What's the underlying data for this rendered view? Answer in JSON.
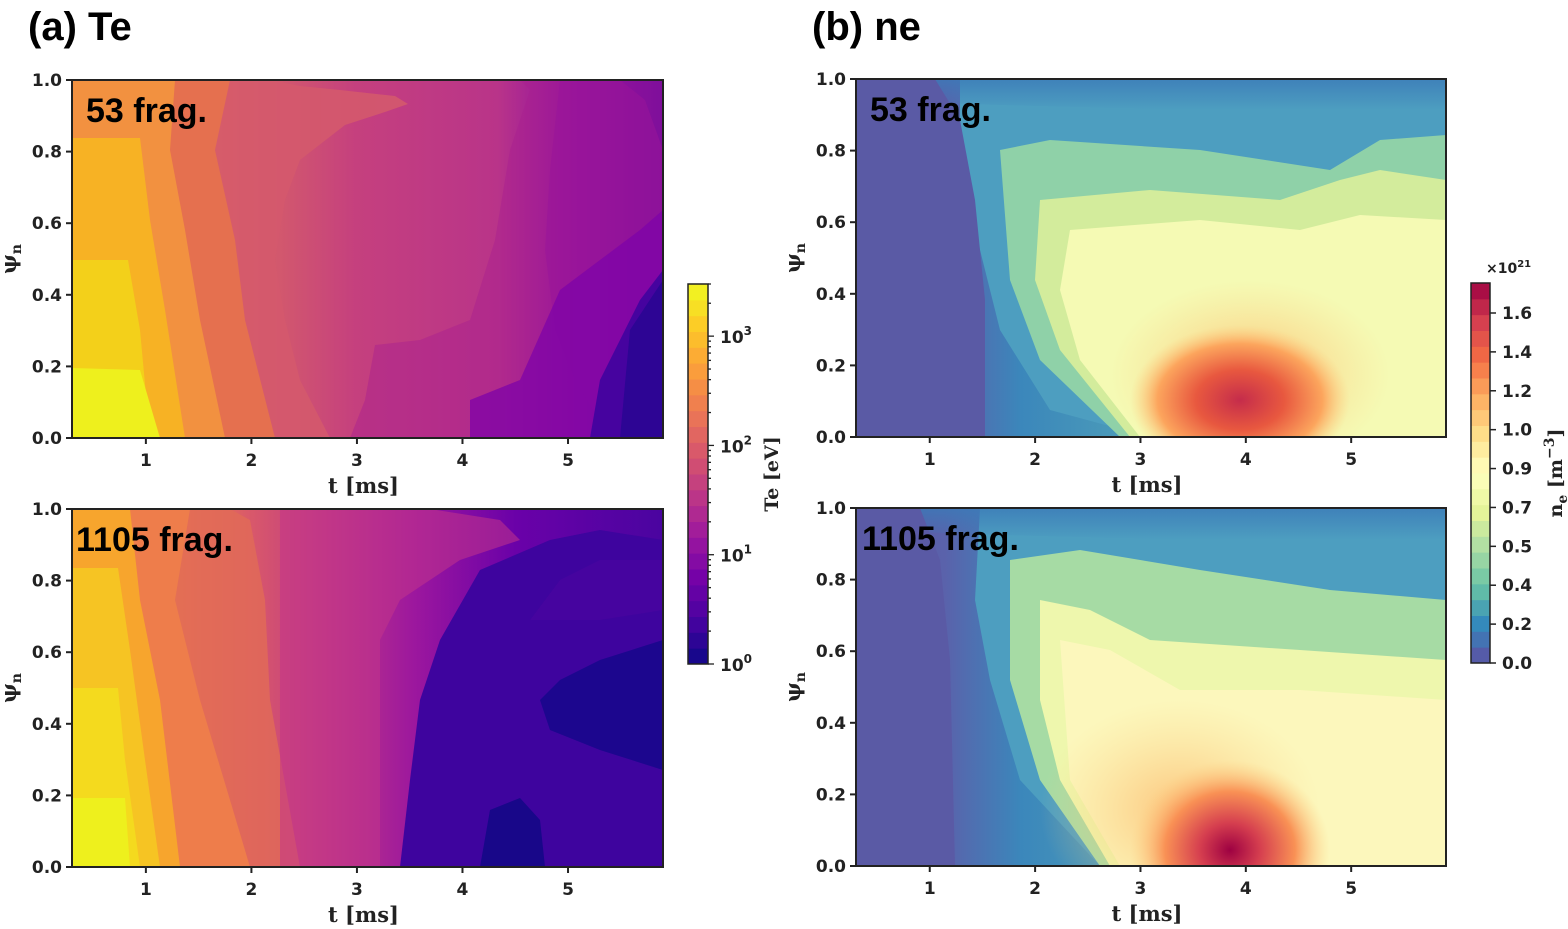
{
  "chart_data": [
    {
      "type": "heatmap",
      "panel": "(a)  Te",
      "title": "53 frag.",
      "variable": "Te",
      "colormap": "plasma",
      "scale": "log",
      "xlabel": "t [ms]",
      "ylabel": "ψn",
      "xlim": [
        0.3,
        5.9
      ],
      "ylim": [
        0.0,
        1.0
      ],
      "xticks": [
        "1",
        "2",
        "3",
        "4",
        "5"
      ],
      "yticks": [
        "0.0",
        "0.2",
        "0.4",
        "0.6",
        "0.8",
        "1.0"
      ],
      "note": "Te drops from ~3000 eV (core, t<1 ms) to ~100 eV by 3 ms; edge/late-time cools to a few eV"
    },
    {
      "type": "heatmap",
      "panel": "(a)  Te",
      "title": "1105 frag.",
      "variable": "Te",
      "colormap": "plasma",
      "scale": "log",
      "xlabel": "t [ms]",
      "ylabel": "ψn",
      "xlim": [
        0.3,
        5.9
      ],
      "ylim": [
        0.0,
        1.0
      ],
      "xticks": [
        "1",
        "2",
        "3",
        "4",
        "5"
      ],
      "yticks": [
        "0.0",
        "0.2",
        "0.4",
        "0.6",
        "0.8",
        "1.0"
      ],
      "note": "Faster cooling: Te reaches ~3-10 eV for t>3.5 ms in the core"
    },
    {
      "type": "heatmap",
      "panel": "(b)  ne",
      "title": "53 frag.",
      "variable": "ne",
      "colormap": "Spectral_r",
      "scale": "linear",
      "xlabel": "t [ms]",
      "ylabel": "ψn",
      "xlim": [
        0.3,
        5.9
      ],
      "ylim": [
        0.0,
        1.0
      ],
      "xticks": [
        "1",
        "2",
        "3",
        "4",
        "5"
      ],
      "yticks": [
        "0.0",
        "0.2",
        "0.4",
        "0.6",
        "0.8",
        "1.0"
      ],
      "note": "Density peak ~1.4e21 m^-3 near t=4 ms, ψn≈0.05"
    },
    {
      "type": "heatmap",
      "panel": "(b)  ne",
      "title": "1105 frag.",
      "variable": "ne",
      "colormap": "Spectral_r",
      "scale": "linear",
      "xlabel": "t [ms]",
      "ylabel": "ψn",
      "xlim": [
        0.3,
        5.9
      ],
      "ylim": [
        0.0,
        1.0
      ],
      "xticks": [
        "1",
        "2",
        "3",
        "4",
        "5"
      ],
      "yticks": [
        "0.0",
        "0.2",
        "0.4",
        "0.6",
        "0.8",
        "1.0"
      ],
      "note": "Density peak ~1.7e21 m^-3 at t≈3.9 ms, ψn≈0"
    }
  ],
  "labels": {
    "panel_a": "(a)  Te",
    "panel_b": "(b)  ne",
    "frag53": "53 frag.",
    "frag1105": "1105 frag.",
    "xlabel": "t [ms]",
    "ylabel_sym": "ψ",
    "ylabel_sub": "n",
    "xticks": [
      "1",
      "2",
      "3",
      "4",
      "5"
    ],
    "yticks": [
      "0.0",
      "0.2",
      "0.4",
      "0.6",
      "0.8",
      "1.0"
    ]
  },
  "colorbars": {
    "te": {
      "label": "Te [eV]",
      "scale": "log",
      "range": [
        1,
        3000
      ],
      "ticks": [
        {
          "base": "10",
          "exp": "3",
          "value": 1000
        },
        {
          "base": "10",
          "exp": "2",
          "value": 100
        },
        {
          "base": "10",
          "exp": "1",
          "value": 10
        },
        {
          "base": "10",
          "exp": "0",
          "value": 1
        }
      ],
      "colors": [
        "#0d0887",
        "#46039f",
        "#7201a8",
        "#9c179e",
        "#bd3786",
        "#d8576b",
        "#ed7953",
        "#fb9f3a",
        "#fdca26",
        "#f0f921"
      ]
    },
    "ne": {
      "label_main": "n",
      "label_sub": "e",
      "label_unit": " [m",
      "label_exp": "−3",
      "label_close": "]",
      "multiplier_base": "×10",
      "multiplier_exp": "21",
      "range": [
        0,
        1.75
      ],
      "ticks": [
        "0.0",
        "0.2",
        "0.4",
        "0.5",
        "0.7",
        "0.9",
        "1.0",
        "1.2",
        "1.4",
        "1.6"
      ],
      "colors": [
        "#5e4fa2",
        "#3288bd",
        "#66c2a5",
        "#abdda4",
        "#e6f598",
        "#ffffbf",
        "#fee08b",
        "#fdae61",
        "#f46d43",
        "#d53e4f",
        "#9e0142"
      ]
    }
  }
}
